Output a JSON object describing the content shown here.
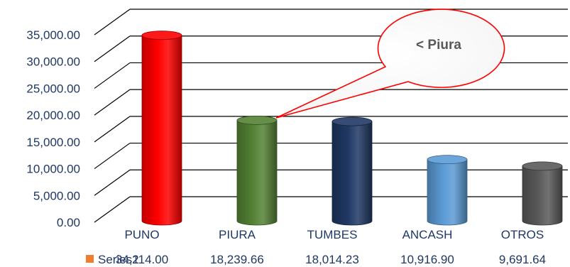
{
  "chart_data": {
    "type": "bar",
    "style": "3d-cylinder",
    "categories": [
      "PUNO",
      "PIURA",
      "TUMBES",
      "ANCASH",
      "OTROS"
    ],
    "series": [
      {
        "name": "Series2",
        "values": [
          34114.0,
          18239.66,
          18014.23,
          10916.9,
          9691.64
        ],
        "value_labels": [
          "34,114.00",
          "18,239.66",
          "18,014.23",
          "10,916.90",
          "9,691.64"
        ],
        "legend_color": "#ed7d31"
      }
    ],
    "bar_colors": [
      "#ff0000",
      "#548235",
      "#203864",
      "#5b9bd5",
      "#595959"
    ],
    "ylim": [
      0,
      35000
    ],
    "yticks": [
      "0.00",
      "5,000.00",
      "10,000.00",
      "15,000.00",
      "20,000.00",
      "25,000.00",
      "30,000.00",
      "35,000.00"
    ],
    "grid": true,
    "data_table": true,
    "annotation": {
      "text": "< Piura",
      "points_to": "PIURA"
    },
    "title": "",
    "xlabel": "",
    "ylabel": ""
  }
}
